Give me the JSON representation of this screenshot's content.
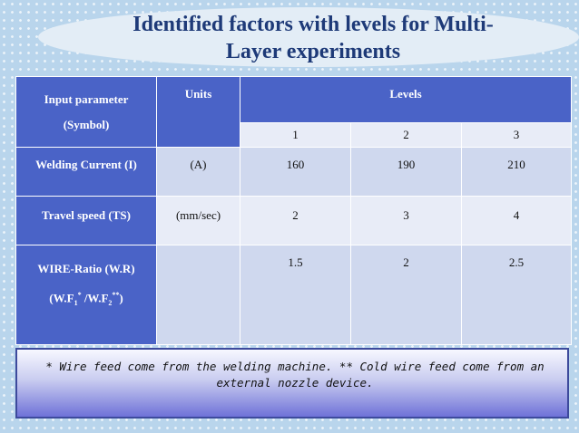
{
  "title": "Identified factors with levels for Multi-Layer experiments",
  "title_lines": [
    "Identified factors with levels for Multi-",
    "Layer experiments"
  ],
  "table": {
    "headers": {
      "param_line1": "Input parameter",
      "param_line2": "(Symbol)",
      "units": "Units",
      "levels": "Levels",
      "level_numbers": [
        "1",
        "2",
        "3"
      ]
    },
    "rows": [
      {
        "param": "Welding Current (I)",
        "units": "(A)",
        "levels": [
          "160",
          "190",
          "210"
        ]
      },
      {
        "param": "Travel speed  (TS)",
        "units": "(mm/sec)",
        "levels": [
          "2",
          "3",
          "4"
        ]
      },
      {
        "param": "WIRE-Ratio (W.R)",
        "param_sub": {
          "prefix": "(W.F",
          "sub1": "1",
          "sup1": "*",
          "mid": " /W.F",
          "sub2": "2",
          "sup2": "**",
          "suffix": ")"
        },
        "units": "",
        "levels": [
          "1.5",
          "2",
          "2.5"
        ]
      }
    ]
  },
  "note": "* Wire feed come from the welding machine. ** Cold wire feed come from an external nozzle device.",
  "colors": {
    "header_blue": "#4a63c7",
    "title_blue": "#1e3a78",
    "row_light": "#cfd8ee"
  }
}
